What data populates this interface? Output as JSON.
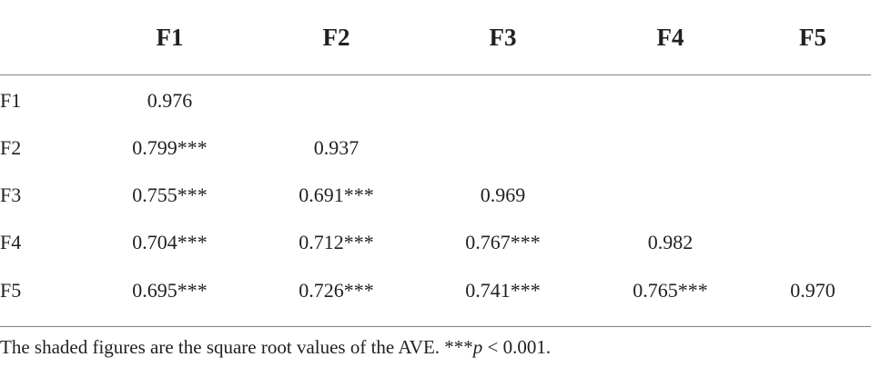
{
  "table": {
    "columns": [
      "",
      "F1",
      "F2",
      "F3",
      "F4",
      "F5"
    ],
    "rows": [
      {
        "label": "F1",
        "cells": [
          "0.976",
          "",
          "",
          "",
          ""
        ]
      },
      {
        "label": "F2",
        "cells": [
          "0.799***",
          "0.937",
          "",
          "",
          ""
        ]
      },
      {
        "label": "F3",
        "cells": [
          "0.755***",
          "0.691***",
          "0.969",
          "",
          ""
        ]
      },
      {
        "label": "F4",
        "cells": [
          "0.704***",
          "0.712***",
          "0.767***",
          "0.982",
          ""
        ]
      },
      {
        "label": "F5",
        "cells": [
          "0.695***",
          "0.726***",
          "0.741***",
          "0.765***",
          "0.970"
        ]
      }
    ]
  },
  "footnote": {
    "text_before": "The shaded figures are the square root values of the AVE. ***",
    "p_symbol": "p",
    "text_after": " < 0.001."
  }
}
